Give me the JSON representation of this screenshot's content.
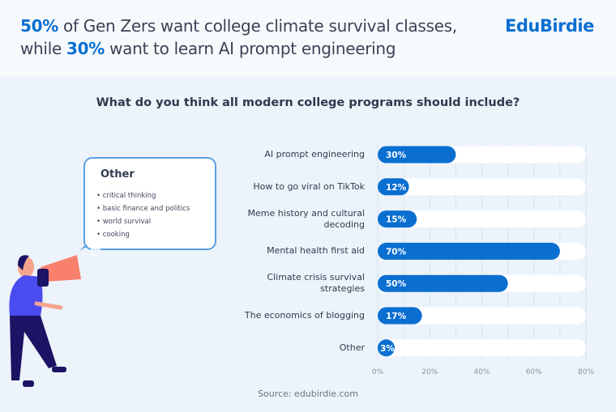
{
  "header": {
    "headline_pct1": "50%",
    "headline_part1": " of Gen Zers want college climate survival classes,",
    "headline_part2_pre": "while ",
    "headline_pct2": "30%",
    "headline_part2": " want to learn AI prompt engineering",
    "logo": "EduBirdie"
  },
  "callout": {
    "title": "Other",
    "items": [
      "critical thinking",
      "basic finance and politics",
      "world survival",
      "cooking"
    ]
  },
  "source": "Source: edubirdie.com",
  "colors": {
    "bar": "#0a6fd0",
    "track": "#ffffff",
    "accent": "#0a6fd0",
    "background": "#ecf3fa"
  },
  "chart_data": {
    "type": "bar",
    "orientation": "horizontal",
    "title": "What do you think all modern college programs should include?",
    "categories": [
      "AI prompt engineering",
      "How to go viral on TikTok",
      "Meme history and cultural decoding",
      "Mental health first aid",
      "Climate crisis survival strategies",
      "The economics of blogging",
      "Other"
    ],
    "values": [
      30,
      12,
      15,
      70,
      50,
      17,
      3
    ],
    "data_labels": [
      "30%",
      "12%",
      "15%",
      "70%",
      "50%",
      "17%",
      "3%"
    ],
    "xlim": [
      0,
      80
    ],
    "xticks": [
      "0%",
      "20%",
      "40%",
      "60%",
      "80%"
    ],
    "grid": true
  }
}
